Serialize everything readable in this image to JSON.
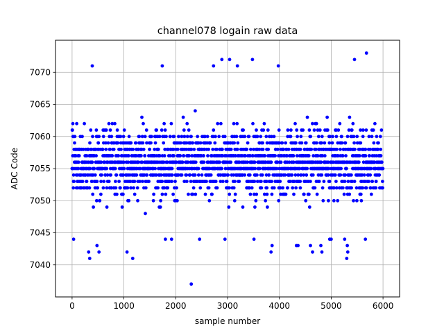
{
  "chart_data": {
    "type": "scatter",
    "title": "channel078 logain raw data",
    "xlabel": "sample number",
    "ylabel": "ADC Code",
    "xlim": [
      -320,
      6320
    ],
    "ylim": [
      7035,
      7075
    ],
    "xticks": [
      0,
      1000,
      2000,
      3000,
      4000,
      5000,
      6000
    ],
    "yticks": [
      7040,
      7045,
      7050,
      7055,
      7060,
      7065,
      7070
    ],
    "grid": true,
    "marker_color": "#0000ff",
    "series": [
      {
        "n_samples": 6000,
        "typical_range": [
          7044,
          7068
        ],
        "distribution_center": 7056,
        "outliers": [
          {
            "x": 2300,
            "y": 7037
          },
          {
            "x": 1170,
            "y": 7041
          },
          {
            "x": 340,
            "y": 7041
          },
          {
            "x": 5300,
            "y": 7041
          },
          {
            "x": 320,
            "y": 7042
          },
          {
            "x": 520,
            "y": 7042
          },
          {
            "x": 1060,
            "y": 7042
          },
          {
            "x": 3840,
            "y": 7042
          },
          {
            "x": 4640,
            "y": 7042
          },
          {
            "x": 4820,
            "y": 7042
          },
          {
            "x": 5320,
            "y": 7042
          },
          {
            "x": 480,
            "y": 7043
          },
          {
            "x": 3860,
            "y": 7043
          },
          {
            "x": 4330,
            "y": 7043
          },
          {
            "x": 4360,
            "y": 7043
          },
          {
            "x": 4600,
            "y": 7043
          },
          {
            "x": 4800,
            "y": 7043
          },
          {
            "x": 5310,
            "y": 7043
          },
          {
            "x": 30,
            "y": 7044
          },
          {
            "x": 1800,
            "y": 7044
          },
          {
            "x": 1920,
            "y": 7044
          },
          {
            "x": 2460,
            "y": 7044
          },
          {
            "x": 2950,
            "y": 7044
          },
          {
            "x": 3510,
            "y": 7044
          },
          {
            "x": 4970,
            "y": 7044
          },
          {
            "x": 5000,
            "y": 7044
          },
          {
            "x": 5260,
            "y": 7044
          },
          {
            "x": 5660,
            "y": 7044
          },
          {
            "x": 390,
            "y": 7071
          },
          {
            "x": 1740,
            "y": 7071
          },
          {
            "x": 2730,
            "y": 7071
          },
          {
            "x": 3190,
            "y": 7071
          },
          {
            "x": 3980,
            "y": 7071
          },
          {
            "x": 2890,
            "y": 7072
          },
          {
            "x": 3040,
            "y": 7072
          },
          {
            "x": 3480,
            "y": 7072
          },
          {
            "x": 5450,
            "y": 7072
          },
          {
            "x": 5680,
            "y": 7073
          }
        ]
      }
    ]
  }
}
